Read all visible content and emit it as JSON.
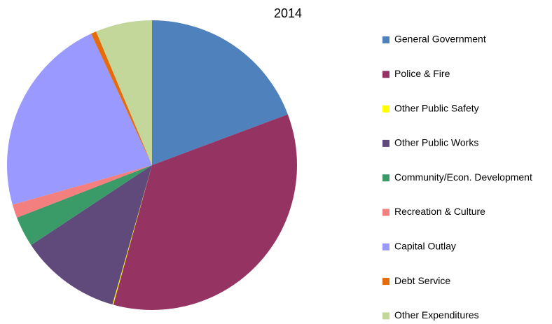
{
  "chart_data": {
    "type": "pie",
    "title": "2014",
    "categories": [
      "General Government",
      "Police & Fire",
      "Other Public Safety",
      "Other Public Works",
      "Community/Econ. Development",
      "Recreation & Culture",
      "Capital Outlay",
      "Debt Service",
      "Other Expenditures"
    ],
    "values": [
      19.3,
      35.0,
      0.1,
      11.3,
      3.4,
      1.5,
      22.5,
      0.6,
      6.3
    ],
    "colors": [
      "#4f81bd",
      "#953463",
      "#ffff00",
      "#604a7b",
      "#3a9a68",
      "#f47f7f",
      "#9999ff",
      "#e46c0a",
      "#c4d79b"
    ],
    "legend": "right"
  }
}
